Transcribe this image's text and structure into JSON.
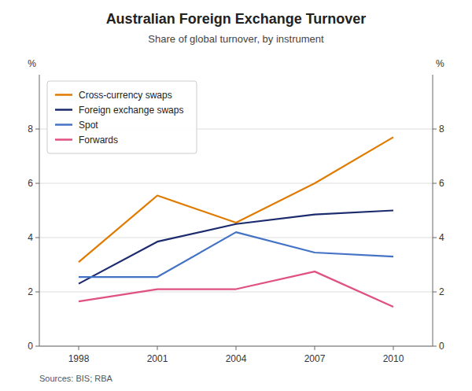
{
  "chart_data": {
    "type": "line",
    "title": "Australian Foreign Exchange Turnover",
    "subtitle": "Share of global turnover, by instrument",
    "source": "Sources: BIS; RBA",
    "y_label": "%",
    "y2_label": "%",
    "x": [
      1998,
      2001,
      2004,
      2007,
      2010
    ],
    "series": [
      {
        "name": "Cross-currency swaps",
        "color": "#E07B00",
        "values": [
          3.1,
          5.55,
          4.55,
          6.0,
          7.7
        ]
      },
      {
        "name": "Foreign exchange swaps",
        "color": "#1C2B6E",
        "values": [
          2.3,
          3.85,
          4.5,
          4.85,
          5.0
        ]
      },
      {
        "name": "Spot",
        "color": "#4472C4",
        "values": [
          2.55,
          2.55,
          4.2,
          3.45,
          3.3
        ]
      },
      {
        "name": "Forwards",
        "color": "#E05080",
        "values": [
          1.65,
          2.1,
          2.1,
          2.75,
          1.45
        ]
      }
    ],
    "xlim": [
      1996.5,
      2011.5
    ],
    "xticks": [
      1998,
      2001,
      2004,
      2007,
      2010
    ],
    "ylim": [
      0,
      10
    ],
    "yticks": [
      0,
      2,
      4,
      6,
      8
    ],
    "y2lim": [
      0,
      10
    ],
    "y2ticks": [
      0,
      2,
      4,
      6,
      8
    ],
    "grid": true,
    "legend": "upper left"
  }
}
